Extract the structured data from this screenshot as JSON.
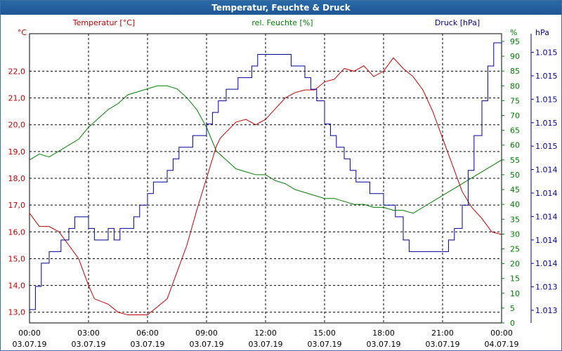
{
  "window": {
    "title": "Temperatur, Feuchte & Druck"
  },
  "colors": {
    "temp": "#c00000",
    "humid": "#008000",
    "press": "#0000a0",
    "grid": "#000000"
  },
  "chart_data": {
    "type": "line",
    "title": "Temperatur, Feuchte & Druck",
    "x_ticks": [
      {
        "time": "00:00",
        "date": "03.07.19"
      },
      {
        "time": "03:00",
        "date": "03.07.19"
      },
      {
        "time": "06:00",
        "date": "03.07.19"
      },
      {
        "time": "09:00",
        "date": "03.07.19"
      },
      {
        "time": "12:00",
        "date": "03.07.19"
      },
      {
        "time": "15:00",
        "date": "03.07.19"
      },
      {
        "time": "18:00",
        "date": "03.07.19"
      },
      {
        "time": "21:00",
        "date": "03.07.19"
      },
      {
        "time": "00:00",
        "date": "04.07.19"
      }
    ],
    "xlim_hours": [
      0,
      24
    ],
    "left_axis": {
      "unit": "°C",
      "ylim": [
        12.6,
        23.4
      ],
      "ticks": [
        "13,0",
        "14,0",
        "15,0",
        "16,0",
        "17,0",
        "18,0",
        "19,0",
        "20,0",
        "21,0",
        "22,0"
      ]
    },
    "right_axis_humidity": {
      "unit": "%",
      "ylim": [
        0,
        97.6
      ],
      "ticks": [
        "0",
        "5",
        "10",
        "15",
        "20",
        "25",
        "30",
        "35",
        "40",
        "45",
        "50",
        "55",
        "60",
        "65",
        "70",
        "75",
        "80",
        "85",
        "90",
        "95"
      ]
    },
    "right_axis_pressure": {
      "unit": "hPa",
      "ticks": [
        "1.013",
        "1.013",
        "1.014",
        "1.014",
        "1.014",
        "1.014",
        "1.014",
        "1.015",
        "1.015",
        "1.015",
        "1.015",
        "1.015"
      ]
    },
    "series": [
      {
        "name": "Temperatur [°C]",
        "axis": "left",
        "x": [
          0,
          0.5,
          1,
          1.5,
          2,
          2.5,
          3,
          3.3,
          4,
          4.5,
          5,
          5.5,
          6,
          6.5,
          7,
          7.5,
          8,
          8.5,
          9,
          9.5,
          9.7,
          10.1,
          10.5,
          11,
          11.5,
          12,
          12.5,
          13,
          13.5,
          14,
          14.5,
          15,
          15.5,
          16,
          16.5,
          17,
          17.5,
          18,
          18.5,
          19,
          19.5,
          20,
          20.5,
          21,
          21.5,
          22,
          22.5,
          23,
          23.5,
          24
        ],
        "values": [
          16.7,
          16.2,
          16.2,
          16.0,
          15.5,
          15.0,
          14.0,
          13.5,
          13.3,
          13.0,
          12.9,
          12.9,
          12.9,
          13.2,
          13.5,
          14.5,
          15.5,
          16.8,
          18.0,
          19.2,
          19.5,
          19.8,
          20.1,
          20.2,
          20.0,
          20.2,
          20.6,
          21.0,
          21.2,
          21.3,
          21.3,
          21.6,
          21.7,
          22.1,
          22.0,
          22.2,
          21.8,
          22.0,
          22.5,
          22.1,
          21.8,
          21.3,
          20.5,
          19.5,
          18.5,
          17.5,
          16.9,
          16.5,
          16.0,
          15.9
        ]
      },
      {
        "name": "rel. Feuchte [%]",
        "axis": "right_humidity",
        "x": [
          0,
          0.5,
          1,
          1.5,
          2,
          2.5,
          3,
          3.5,
          4,
          4.5,
          5,
          5.5,
          6,
          6.5,
          7,
          7.5,
          8,
          8.5,
          9,
          9.5,
          10,
          10.5,
          11,
          11.5,
          12,
          12.5,
          13,
          13.5,
          14,
          14.5,
          15,
          15.5,
          16,
          16.5,
          17,
          17.5,
          18,
          18.5,
          19,
          19.5,
          20,
          20.5,
          21,
          21.5,
          22,
          22.5,
          23,
          23.5,
          24
        ],
        "values": [
          55,
          57,
          56,
          58,
          60,
          62,
          66,
          69,
          72,
          74,
          77,
          78,
          79,
          80,
          80,
          79,
          76,
          72,
          66,
          58,
          55,
          52,
          51,
          50,
          50,
          48,
          47,
          45,
          44,
          43,
          42,
          42,
          41,
          40,
          40,
          39,
          39,
          38,
          38,
          37,
          39,
          41,
          43,
          45,
          47,
          49,
          51,
          53,
          55
        ]
      },
      {
        "name": "Druck [hPa]",
        "axis": "right_pressure",
        "x": [
          0,
          0.3,
          0.6,
          1,
          1.3,
          1.6,
          2,
          2.3,
          2.6,
          3,
          3.3,
          3.6,
          4,
          4.3,
          4.6,
          5,
          5.3,
          5.6,
          6,
          6.3,
          6.6,
          7,
          7.3,
          7.6,
          8,
          8.3,
          8.6,
          9,
          9.3,
          9.6,
          10,
          10.3,
          10.6,
          11,
          11.3,
          11.6,
          12,
          12.3,
          12.6,
          13,
          13.3,
          13.6,
          14,
          14.3,
          14.6,
          15,
          15.3,
          15.6,
          16,
          16.3,
          16.6,
          17,
          17.3,
          17.6,
          18,
          18.3,
          18.6,
          19,
          19.3,
          19.6,
          20,
          20.3,
          20.6,
          21,
          21.3,
          21.6,
          22,
          22.3,
          22.6,
          23,
          23.3,
          23.6,
          24
        ],
        "values": [
          1,
          2,
          3,
          3.5,
          3.5,
          4,
          4.5,
          5,
          5,
          4.5,
          4,
          4,
          4.5,
          4,
          4.5,
          4.5,
          5,
          5.5,
          6,
          6.5,
          6.5,
          7,
          7.5,
          8,
          8,
          8.5,
          8.5,
          9,
          9.5,
          10,
          10.5,
          10.5,
          11,
          11,
          11.5,
          12,
          12,
          12,
          12,
          12,
          11.5,
          11.5,
          11,
          10.5,
          10,
          9,
          8.5,
          8,
          7.5,
          7,
          6.5,
          6.5,
          6,
          6,
          5.5,
          5.5,
          5,
          4,
          3.5,
          3.5,
          3.5,
          3.5,
          3.5,
          3.5,
          4,
          4.5,
          5.5,
          7,
          8.5,
          10,
          11.5,
          12.5,
          12.7
        ]
      }
    ]
  }
}
